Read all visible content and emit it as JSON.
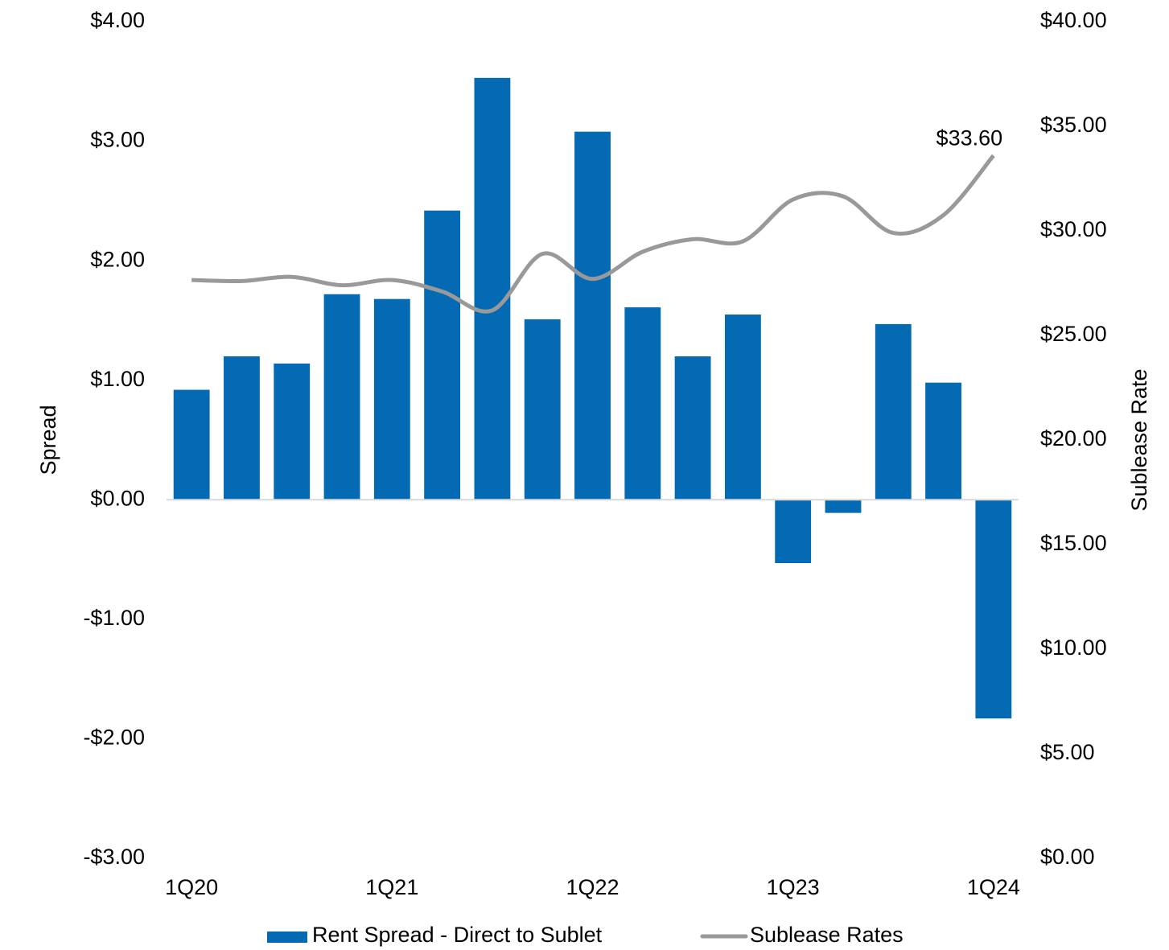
{
  "chart_data": {
    "type": "bar_line",
    "categories": [
      "1Q20",
      null,
      null,
      null,
      "1Q21",
      null,
      null,
      null,
      "1Q22",
      null,
      null,
      null,
      "1Q23",
      null,
      null,
      null,
      "1Q24"
    ],
    "series": [
      {
        "name": "Rent Spread - Direct to Sublet",
        "type": "bar",
        "color": "#046ab4",
        "values": [
          0.92,
          1.2,
          1.14,
          1.72,
          1.68,
          2.42,
          3.53,
          1.51,
          3.08,
          1.61,
          1.2,
          1.55,
          -0.53,
          -0.11,
          1.47,
          0.98,
          -1.83
        ]
      },
      {
        "name": "Sublease Rates",
        "type": "line",
        "axis": "y2",
        "color": "#999999",
        "values": [
          27.65,
          27.6,
          27.8,
          27.4,
          27.65,
          27.1,
          26.2,
          28.9,
          27.7,
          29.0,
          29.6,
          29.5,
          31.5,
          31.65,
          29.9,
          30.75,
          33.6
        ],
        "value_labels": [
          null,
          null,
          null,
          null,
          null,
          null,
          null,
          null,
          null,
          null,
          null,
          null,
          null,
          null,
          null,
          null,
          "$33.60"
        ]
      }
    ],
    "ylabel": "Spread",
    "y2label": "Sublease Rate",
    "ylim": [
      -3,
      4
    ],
    "yticks": [
      {
        "value": -3,
        "label": "-$3.00"
      },
      {
        "value": -2,
        "label": "-$2.00"
      },
      {
        "value": -1,
        "label": "-$1.00"
      },
      {
        "value": 0,
        "label": "$0.00"
      },
      {
        "value": 1,
        "label": "$1.00"
      },
      {
        "value": 2,
        "label": "$2.00"
      },
      {
        "value": 3,
        "label": "$3.00"
      },
      {
        "value": 4,
        "label": "$4.00"
      }
    ],
    "y2lim": [
      0,
      40
    ],
    "y2ticks": [
      {
        "value": 0,
        "label": "$0.00"
      },
      {
        "value": 5,
        "label": "$5.00"
      },
      {
        "value": 10,
        "label": "$10.00"
      },
      {
        "value": 15,
        "label": "$15.00"
      },
      {
        "value": 20,
        "label": "$20.00"
      },
      {
        "value": 25,
        "label": "$25.00"
      },
      {
        "value": 30,
        "label": "$30.00"
      },
      {
        "value": 35,
        "label": "$35.00"
      },
      {
        "value": 40,
        "label": "$40.00"
      }
    ],
    "grid": false,
    "legend": "bottom"
  }
}
